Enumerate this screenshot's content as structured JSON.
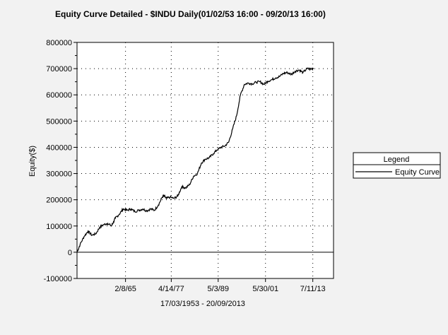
{
  "chart_data": {
    "type": "line",
    "title": "Equity Curve Detailed - $INDU Daily(01/02/53 16:00 - 09/20/13 16:00)",
    "ylabel": "Equity($)",
    "xlabel": "17/03/1953 - 20/09/2013",
    "ylim": [
      -100000,
      800000
    ],
    "xlim": [
      1953.2,
      2018.8
    ],
    "yticks": [
      -100000,
      0,
      100000,
      200000,
      300000,
      400000,
      500000,
      600000,
      700000,
      800000
    ],
    "ytick_labels": [
      "-100000",
      "0",
      "100000",
      "200000",
      "300000",
      "400000",
      "500000",
      "600000",
      "700000",
      "800000"
    ],
    "xticks": [
      {
        "label": "2/8/65",
        "year": 1965.6
      },
      {
        "label": "4/14/77",
        "year": 1977.3
      },
      {
        "label": "5/3/89",
        "year": 1989.3
      },
      {
        "label": "5/30/01",
        "year": 2001.4
      },
      {
        "label": "7/11/13",
        "year": 2013.5
      }
    ],
    "grid": true,
    "legend": {
      "title": "Legend",
      "placement": "right"
    },
    "series": [
      {
        "name": "Equity Curve",
        "color": "#000000",
        "x": [
          1953.2,
          1954.0,
          1955.0,
          1956.0,
          1957.0,
          1958.0,
          1959.0,
          1960.0,
          1961.0,
          1962.0,
          1962.5,
          1963.0,
          1964.0,
          1965.0,
          1966.0,
          1967.0,
          1968.0,
          1969.0,
          1970.0,
          1971.0,
          1972.0,
          1973.0,
          1974.0,
          1975.0,
          1975.5,
          1976.0,
          1977.0,
          1978.0,
          1979.0,
          1980.0,
          1981.0,
          1982.0,
          1983.0,
          1984.0,
          1985.0,
          1986.0,
          1987.0,
          1988.0,
          1989.0,
          1990.0,
          1991.0,
          1992.0,
          1993.0,
          1994.0,
          1995.0,
          1996.0,
          1997.0,
          1998.0,
          1999.0,
          2000.0,
          2001.0,
          2002.0,
          2003.0,
          2004.0,
          2005.0,
          2006.0,
          2007.0,
          2008.0,
          2009.0,
          2010.0,
          2011.0,
          2012.0,
          2013.0,
          2013.7
        ],
        "y": [
          0,
          30000,
          60000,
          80000,
          65000,
          70000,
          95000,
          105000,
          110000,
          100000,
          115000,
          130000,
          145000,
          165000,
          160000,
          165000,
          155000,
          160000,
          165000,
          158000,
          165000,
          160000,
          180000,
          210000,
          215000,
          205000,
          210000,
          205000,
          215000,
          250000,
          245000,
          258000,
          290000,
          300000,
          340000,
          355000,
          360000,
          375000,
          390000,
          400000,
          405000,
          420000,
          470000,
          520000,
          600000,
          640000,
          645000,
          642000,
          648000,
          650000,
          640000,
          652000,
          658000,
          665000,
          670000,
          682000,
          685000,
          678000,
          690000,
          695000,
          685000,
          700000,
          698000,
          702000
        ]
      }
    ]
  }
}
